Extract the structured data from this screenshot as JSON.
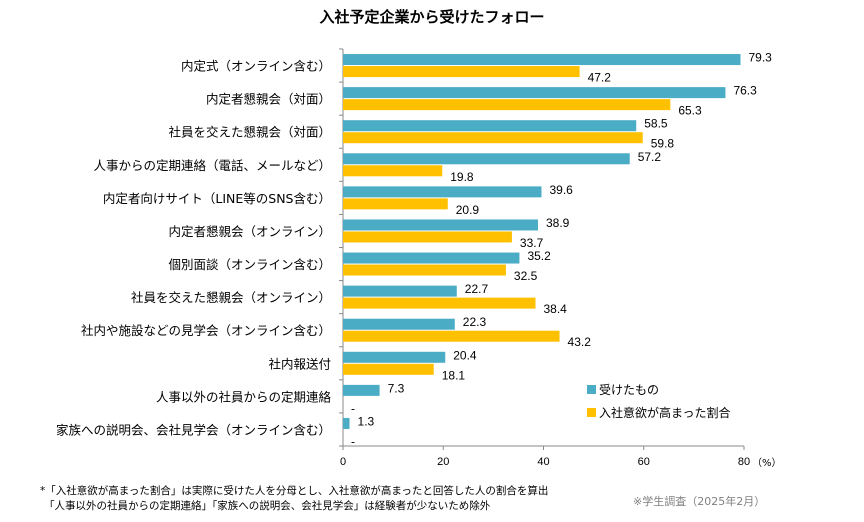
{
  "chart_data": {
    "type": "bar",
    "orientation": "horizontal",
    "title": "入社予定企業から受けたフォロー",
    "categories": [
      "内定式（オンライン含む）",
      "内定者懇親会（対面）",
      "社員を交えた懇親会（対面）",
      "人事からの定期連絡（電話、メールなど）",
      "内定者向けサイト（LINE等のSNS含む）",
      "内定者懇親会（オンライン）",
      "個別面談（オンライン含む）",
      "社員を交えた懇親会（オンライン）",
      "社内や施設などの見学会（オンライン含む）",
      "社内報送付",
      "人事以外の社員からの定期連絡",
      "家族への説明会、会社見学会（オンライン含む）"
    ],
    "series": [
      {
        "name": "受けたもの",
        "color": "#4BACC6",
        "values": [
          79.3,
          76.3,
          58.5,
          57.2,
          39.6,
          38.9,
          35.2,
          22.7,
          22.3,
          20.4,
          7.3,
          1.3
        ]
      },
      {
        "name": "入社意欲が高まった割合",
        "color": "#FFC000",
        "values": [
          47.2,
          65.3,
          59.8,
          19.8,
          20.9,
          33.7,
          32.5,
          38.4,
          43.2,
          18.1,
          null,
          null
        ]
      }
    ],
    "missing_label": "-",
    "xlim": [
      0,
      80
    ],
    "xticks": [
      "0",
      "20",
      "40",
      "60",
      "80"
    ],
    "xunit": "（%）",
    "legend": "right-lower",
    "grid": false
  },
  "notes": [
    "*「入社意欲が高まった割合」は実際に受けた人を分母とし、入社意欲が高まったと回答した人の割合を算出",
    "「人事以外の社員からの定期連絡」「家族への説明会、会社見学会」は経験者が少ないため除外"
  ],
  "source": "※学生調査（2025年2月）"
}
